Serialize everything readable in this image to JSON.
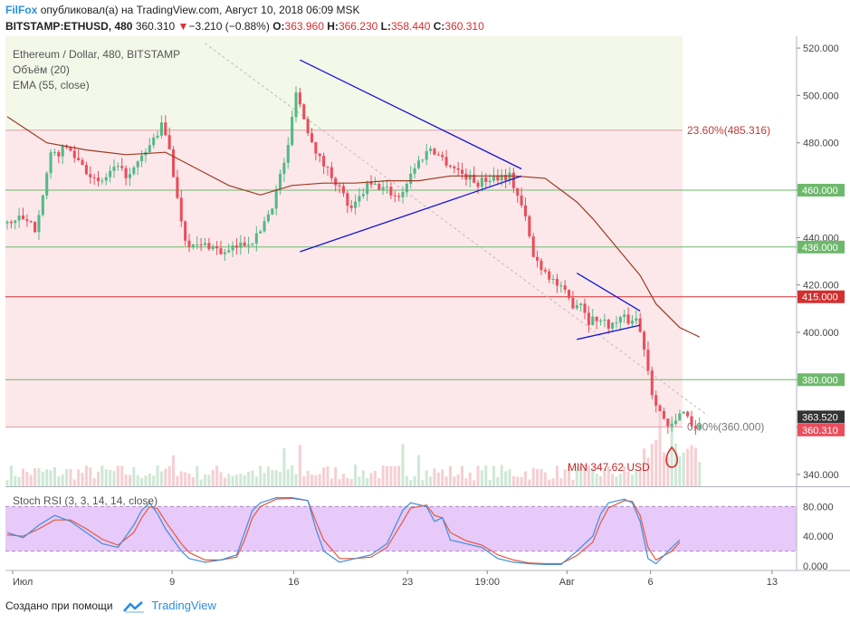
{
  "header": {
    "user": "FilFox",
    "published_text": "опубликовал(а) на TradingView.com, Август 10, 2018 06:09 MSK",
    "symbol": "BITSTAMP:ETHUSD, 480",
    "last": "360.310",
    "change_arrow": "▼",
    "change": "−3.210 (−0.88%)",
    "open_label": "O:",
    "open": "363.960",
    "high_label": "H:",
    "high": "366.230",
    "low_label": "L:",
    "low": "358.440",
    "close_label": "C:",
    "close": "360.310"
  },
  "legend": [
    "Ethereum / Dollar, 480, BITSTAMP",
    "Объём (20)",
    "EMA (55, close)"
  ],
  "stoch_label": "Stoch RSI (3, 3, 14, 14, close)",
  "annotations": {
    "fib_top": "23.60%(485.316)",
    "fib_bottom": "0.00%(360.000)",
    "min_label": "MIN 347.62 USD"
  },
  "footer": {
    "created_with": "Создано при помощи",
    "brand": "TradingView"
  },
  "colors": {
    "up": "#53b987",
    "down": "#eb4d5c",
    "ema": "#9c3a23",
    "trend": "#1414d6",
    "support_green": "#6db86b",
    "resistance_red": "#d32f2f",
    "pink_zone": "#fce8ea",
    "green_zone": "#f3f8e8",
    "stoch_band": "#e7c9fa",
    "stoch_k": "#3d8fdb",
    "stoch_d": "#e4593b",
    "current_price_bg": "#333333"
  },
  "chart_data": {
    "type": "candlestick",
    "y_axis": {
      "min": 335,
      "max": 525,
      "ticks": [
        340,
        360,
        380,
        400,
        420,
        440,
        460,
        480,
        500,
        520
      ]
    },
    "x_ticks": [
      "Июл",
      "9",
      "16",
      "23",
      "19:00",
      "Авг",
      "6",
      "13"
    ],
    "horizontal_levels": [
      {
        "value": 460,
        "label": "460.000",
        "color": "green"
      },
      {
        "value": 436,
        "label": "436.000",
        "color": "green"
      },
      {
        "value": 415,
        "label": "415.000",
        "color": "red"
      },
      {
        "value": 380,
        "label": "380.000",
        "color": "green"
      }
    ],
    "price_tags": [
      {
        "value": 363.52,
        "label": "363.520",
        "style": "current"
      },
      {
        "value": 360.31,
        "label": "360.310",
        "style": "down"
      }
    ],
    "fibonacci": [
      {
        "level": "23.60%",
        "value": 485.316
      },
      {
        "level": "0.00%",
        "value": 360.0
      }
    ],
    "min_price": 347.62,
    "close_path": [
      [
        0,
        446
      ],
      [
        4,
        448
      ],
      [
        8,
        444
      ],
      [
        12,
        474
      ],
      [
        16,
        478
      ],
      [
        20,
        471
      ],
      [
        24,
        462
      ],
      [
        28,
        469
      ],
      [
        32,
        466
      ],
      [
        36,
        476
      ],
      [
        40,
        487
      ],
      [
        42,
        478
      ],
      [
        44,
        456
      ],
      [
        46,
        440
      ],
      [
        48,
        436
      ],
      [
        52,
        437
      ],
      [
        56,
        433
      ],
      [
        60,
        437
      ],
      [
        64,
        440
      ],
      [
        68,
        454
      ],
      [
        72,
        478
      ],
      [
        74,
        503
      ],
      [
        76,
        490
      ],
      [
        80,
        473
      ],
      [
        84,
        464
      ],
      [
        88,
        451
      ],
      [
        92,
        462
      ],
      [
        96,
        461
      ],
      [
        100,
        457
      ],
      [
        104,
        470
      ],
      [
        108,
        478
      ],
      [
        112,
        472
      ],
      [
        116,
        467
      ],
      [
        120,
        463
      ],
      [
        124,
        466
      ],
      [
        128,
        466
      ],
      [
        130,
        458
      ],
      [
        132,
        448
      ],
      [
        134,
        432
      ],
      [
        136,
        428
      ],
      [
        140,
        420
      ],
      [
        144,
        412
      ],
      [
        146,
        413
      ],
      [
        148,
        405
      ],
      [
        150,
        406
      ],
      [
        152,
        404
      ],
      [
        154,
        403
      ],
      [
        156,
        406
      ],
      [
        158,
        405
      ],
      [
        160,
        406
      ],
      [
        162,
        394
      ],
      [
        164,
        375
      ],
      [
        166,
        367
      ],
      [
        168,
        359
      ],
      [
        170,
        362
      ],
      [
        172,
        368
      ],
      [
        174,
        361
      ],
      [
        175,
        360.31
      ]
    ],
    "ema55_path": [
      [
        0,
        491
      ],
      [
        10,
        480
      ],
      [
        20,
        477
      ],
      [
        30,
        475
      ],
      [
        40,
        476
      ],
      [
        48,
        469
      ],
      [
        56,
        462
      ],
      [
        64,
        458
      ],
      [
        72,
        462
      ],
      [
        80,
        463
      ],
      [
        88,
        463
      ],
      [
        96,
        464
      ],
      [
        104,
        464
      ],
      [
        112,
        466
      ],
      [
        120,
        466
      ],
      [
        128,
        466
      ],
      [
        136,
        465
      ],
      [
        140,
        460
      ],
      [
        144,
        455
      ],
      [
        148,
        448
      ],
      [
        152,
        440
      ],
      [
        156,
        432
      ],
      [
        160,
        424
      ],
      [
        164,
        412
      ],
      [
        170,
        402
      ],
      [
        175,
        398
      ]
    ],
    "trendlines": [
      {
        "from": [
          74,
          515
        ],
        "to": [
          130,
          469
        ]
      },
      {
        "from": [
          74,
          434
        ],
        "to": [
          130,
          466
        ]
      },
      {
        "from": [
          144,
          425
        ],
        "to": [
          160,
          409
        ]
      },
      {
        "from": [
          144,
          397
        ],
        "to": [
          160,
          403
        ]
      }
    ],
    "stoch_rsi": {
      "y_ticks": [
        0,
        40,
        80
      ],
      "upper_band": 80,
      "lower_band": 20,
      "k": [
        [
          0,
          45
        ],
        [
          4,
          38
        ],
        [
          8,
          55
        ],
        [
          12,
          68
        ],
        [
          16,
          60
        ],
        [
          20,
          45
        ],
        [
          24,
          30
        ],
        [
          28,
          25
        ],
        [
          32,
          55
        ],
        [
          34,
          75
        ],
        [
          36,
          85
        ],
        [
          38,
          70
        ],
        [
          40,
          50
        ],
        [
          44,
          20
        ],
        [
          46,
          10
        ],
        [
          50,
          5
        ],
        [
          54,
          8
        ],
        [
          58,
          15
        ],
        [
          60,
          45
        ],
        [
          62,
          75
        ],
        [
          64,
          85
        ],
        [
          68,
          92
        ],
        [
          72,
          92
        ],
        [
          76,
          88
        ],
        [
          78,
          50
        ],
        [
          80,
          20
        ],
        [
          84,
          5
        ],
        [
          88,
          10
        ],
        [
          92,
          15
        ],
        [
          96,
          30
        ],
        [
          100,
          75
        ],
        [
          102,
          85
        ],
        [
          106,
          80
        ],
        [
          108,
          60
        ],
        [
          110,
          65
        ],
        [
          112,
          35
        ],
        [
          116,
          30
        ],
        [
          120,
          25
        ],
        [
          124,
          10
        ],
        [
          128,
          5
        ],
        [
          132,
          3
        ],
        [
          136,
          2
        ],
        [
          140,
          2
        ],
        [
          144,
          20
        ],
        [
          148,
          40
        ],
        [
          150,
          70
        ],
        [
          152,
          85
        ],
        [
          156,
          90
        ],
        [
          158,
          85
        ],
        [
          160,
          60
        ],
        [
          162,
          10
        ],
        [
          164,
          3
        ],
        [
          168,
          25
        ],
        [
          170,
          35
        ]
      ],
      "d": [
        [
          0,
          42
        ],
        [
          4,
          40
        ],
        [
          8,
          50
        ],
        [
          12,
          62
        ],
        [
          16,
          62
        ],
        [
          20,
          50
        ],
        [
          24,
          36
        ],
        [
          28,
          28
        ],
        [
          32,
          45
        ],
        [
          34,
          65
        ],
        [
          36,
          80
        ],
        [
          38,
          77
        ],
        [
          40,
          60
        ],
        [
          44,
          30
        ],
        [
          46,
          18
        ],
        [
          50,
          8
        ],
        [
          54,
          8
        ],
        [
          58,
          12
        ],
        [
          60,
          35
        ],
        [
          62,
          65
        ],
        [
          64,
          80
        ],
        [
          68,
          90
        ],
        [
          72,
          91
        ],
        [
          76,
          88
        ],
        [
          78,
          60
        ],
        [
          80,
          35
        ],
        [
          84,
          10
        ],
        [
          88,
          10
        ],
        [
          92,
          12
        ],
        [
          96,
          25
        ],
        [
          100,
          60
        ],
        [
          102,
          78
        ],
        [
          106,
          82
        ],
        [
          108,
          68
        ],
        [
          110,
          65
        ],
        [
          112,
          45
        ],
        [
          116,
          34
        ],
        [
          120,
          28
        ],
        [
          124,
          15
        ],
        [
          128,
          8
        ],
        [
          132,
          4
        ],
        [
          136,
          3
        ],
        [
          140,
          3
        ],
        [
          144,
          14
        ],
        [
          148,
          32
        ],
        [
          150,
          58
        ],
        [
          152,
          78
        ],
        [
          156,
          88
        ],
        [
          158,
          87
        ],
        [
          160,
          68
        ],
        [
          162,
          25
        ],
        [
          164,
          8
        ],
        [
          168,
          20
        ],
        [
          170,
          32
        ]
      ]
    }
  }
}
